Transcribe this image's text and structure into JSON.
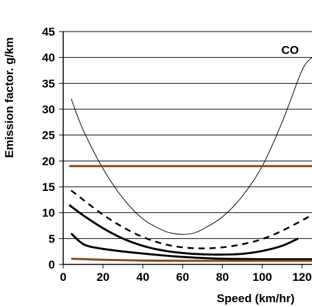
{
  "chart_data": {
    "type": "line",
    "title": "",
    "xlabel": "Speed (km/hr)",
    "ylabel": "Emission factor. g/km",
    "xlim": [
      0,
      125
    ],
    "ylim": [
      0,
      45
    ],
    "x_ticks": [
      0,
      20,
      40,
      60,
      80,
      100,
      120
    ],
    "x_tick_labels": [
      "0",
      "20",
      "40",
      "60",
      "80",
      "100",
      "120"
    ],
    "y_ticks": [
      0,
      5,
      10,
      15,
      20,
      25,
      30,
      35,
      40,
      45
    ],
    "y_tick_labels": [
      "0",
      "5",
      "10",
      "15",
      "20",
      "25",
      "30",
      "35",
      "40",
      "45"
    ],
    "grid": "horizontal",
    "annotations": [
      {
        "text": "CO",
        "x": 114,
        "y": 41.5
      }
    ],
    "series": [
      {
        "style": "thin-solid",
        "color": "#000000",
        "points": [
          [
            4,
            32
          ],
          [
            10,
            26
          ],
          [
            20,
            18.5
          ],
          [
            30,
            12.8
          ],
          [
            40,
            8.8
          ],
          [
            50,
            6.6
          ],
          [
            55,
            6.0
          ],
          [
            60,
            5.8
          ],
          [
            65,
            6.0
          ],
          [
            70,
            6.8
          ],
          [
            80,
            9.2
          ],
          [
            90,
            13.2
          ],
          [
            100,
            19.0
          ],
          [
            110,
            27.5
          ],
          [
            120,
            37.5
          ],
          [
            125,
            40
          ]
        ]
      },
      {
        "style": "thick-dashed",
        "color": "#000000",
        "points": [
          [
            4,
            14.3
          ],
          [
            10,
            12.5
          ],
          [
            20,
            9.6
          ],
          [
            30,
            7.2
          ],
          [
            40,
            5.3
          ],
          [
            50,
            4.0
          ],
          [
            60,
            3.3
          ],
          [
            70,
            3.1
          ],
          [
            80,
            3.3
          ],
          [
            90,
            3.9
          ],
          [
            100,
            4.9
          ],
          [
            110,
            6.5
          ],
          [
            120,
            8.5
          ],
          [
            125,
            9.6
          ]
        ]
      },
      {
        "style": "thick-solid",
        "color": "#000000",
        "points": [
          [
            3,
            11.5
          ],
          [
            10,
            9.5
          ],
          [
            20,
            7.0
          ],
          [
            30,
            5.0
          ],
          [
            40,
            3.6
          ],
          [
            50,
            2.7
          ],
          [
            60,
            2.2
          ],
          [
            70,
            1.95
          ],
          [
            80,
            1.9
          ],
          [
            90,
            2.05
          ],
          [
            100,
            2.6
          ],
          [
            110,
            3.6
          ],
          [
            118,
            5.0
          ]
        ]
      },
      {
        "style": "thick-solid",
        "color": "#000000",
        "points": [
          [
            4,
            6.0
          ],
          [
            8,
            4.5
          ],
          [
            12,
            3.6
          ],
          [
            20,
            3.0
          ],
          [
            30,
            2.5
          ],
          [
            40,
            2.1
          ],
          [
            50,
            1.75
          ],
          [
            60,
            1.45
          ],
          [
            70,
            1.25
          ],
          [
            80,
            1.1
          ],
          [
            90,
            1.05
          ],
          [
            100,
            1.0
          ],
          [
            110,
            1.0
          ],
          [
            125,
            1.0
          ]
        ]
      },
      {
        "style": "thick-solid",
        "color": "#8B4513",
        "points": [
          [
            3,
            19
          ],
          [
            125,
            19
          ]
        ]
      },
      {
        "style": "thick-solid",
        "color": "#8B4513",
        "points": [
          [
            4,
            1.1
          ],
          [
            20,
            0.9
          ],
          [
            40,
            0.75
          ],
          [
            60,
            0.7
          ],
          [
            80,
            0.7
          ],
          [
            100,
            0.7
          ],
          [
            125,
            0.7
          ]
        ]
      }
    ]
  }
}
